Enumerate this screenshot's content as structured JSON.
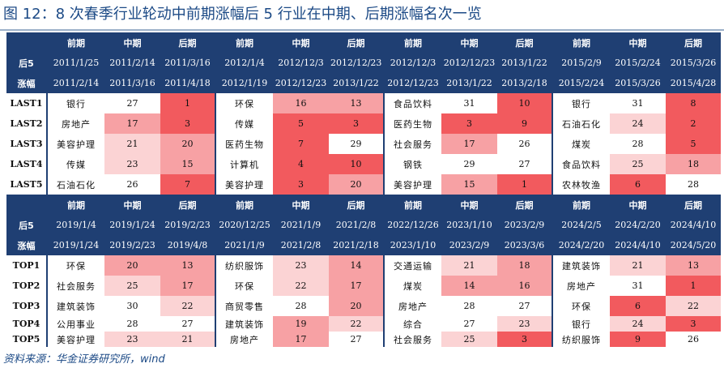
{
  "title": "图 12：8 次春季行业轮动中前期涨幅后 5 行业在中期、后期涨幅名次一览",
  "source": "资料来源：华金证券研究所，wind",
  "colors": {
    "header": "#1f3f73",
    "red_strong": "#f25a5e",
    "red_mid": "#f7a1a4",
    "red_light": "#fbd3d4",
    "title": "#1c4a86"
  },
  "sections": [
    {
      "corner_top": "后5",
      "corner_bottom": "涨幅",
      "groups": [
        {
          "labels": [
            "前期",
            "中期",
            "后期"
          ],
          "start_dates": [
            "2011/1/25",
            "2011/2/14",
            "2011/3/16"
          ],
          "end_dates": [
            "2011/2/14",
            "2011/3/16",
            "2011/4/18"
          ],
          "rows": [
            {
              "name": "银行",
              "mid": "27",
              "late": "1"
            },
            {
              "name": "房地产",
              "mid": "17",
              "late": "3"
            },
            {
              "name": "美容护理",
              "mid": "21",
              "late": "20"
            },
            {
              "name": "传媒",
              "mid": "23",
              "late": "15"
            },
            {
              "name": "石油石化",
              "mid": "26",
              "late": "7"
            }
          ]
        },
        {
          "labels": [
            "前期",
            "中期",
            "后期"
          ],
          "start_dates": [
            "2012/1/4",
            "2012/12/3",
            "2012/12/23"
          ],
          "end_dates": [
            "2012/1/19",
            "2012/12/23",
            "2013/1/22"
          ],
          "rows": [
            {
              "name": "环保",
              "mid": "16",
              "late": "13"
            },
            {
              "name": "传媒",
              "mid": "5",
              "late": "3"
            },
            {
              "name": "医药生物",
              "mid": "7",
              "late": "29"
            },
            {
              "name": "计算机",
              "mid": "4",
              "late": "10"
            },
            {
              "name": "美容护理",
              "mid": "3",
              "late": "20"
            }
          ]
        },
        {
          "labels": [
            "前期",
            "中期",
            "后期"
          ],
          "start_dates": [
            "2012/12/3",
            "2012/12/23",
            "2013/1/22"
          ],
          "end_dates": [
            "2012/12/23",
            "2013/1/22",
            "2013/2/18"
          ],
          "rows": [
            {
              "name": "食品饮料",
              "mid": "31",
              "late": "10"
            },
            {
              "name": "医药生物",
              "mid": "3",
              "late": "9"
            },
            {
              "name": "社会服务",
              "mid": "17",
              "late": "26"
            },
            {
              "name": "钢铁",
              "mid": "29",
              "late": "27"
            },
            {
              "name": "美容护理",
              "mid": "15",
              "late": "1"
            }
          ]
        },
        {
          "labels": [
            "前期",
            "中期",
            "后期"
          ],
          "start_dates": [
            "2015/2/9",
            "2015/2/24",
            "2015/3/26"
          ],
          "end_dates": [
            "2015/2/24",
            "2015/3/26",
            "2015/4/28"
          ],
          "rows": [
            {
              "name": "银行",
              "mid": "31",
              "late": "8"
            },
            {
              "name": "石油石化",
              "mid": "24",
              "late": "2"
            },
            {
              "name": "煤炭",
              "mid": "28",
              "late": "5"
            },
            {
              "name": "食品饮料",
              "mid": "25",
              "late": "18"
            },
            {
              "name": "农林牧渔",
              "mid": "6",
              "late": "28"
            }
          ]
        }
      ],
      "row_labels": [
        "LAST1",
        "LAST2",
        "LAST3",
        "LAST4",
        "LAST5"
      ]
    },
    {
      "corner_top": "后5",
      "corner_bottom": "涨幅",
      "groups": [
        {
          "labels": [
            "前期",
            "中期",
            "后期"
          ],
          "start_dates": [
            "2019/1/4",
            "2019/1/24",
            "2019/2/23"
          ],
          "end_dates": [
            "2019/1/24",
            "2019/2/23",
            "2019/4/8"
          ],
          "rows": [
            {
              "name": "环保",
              "mid": "20",
              "late": "13"
            },
            {
              "name": "社会服务",
              "mid": "25",
              "late": "17"
            },
            {
              "name": "建筑装饰",
              "mid": "30",
              "late": "22"
            },
            {
              "name": "公用事业",
              "mid": "28",
              "late": "27"
            },
            {
              "name": "美容护理",
              "mid": "23",
              "late": "21"
            }
          ]
        },
        {
          "labels": [
            "前期",
            "中期",
            "后期"
          ],
          "start_dates": [
            "2020/12/25",
            "2021/1/9",
            "2021/2/8"
          ],
          "end_dates": [
            "2021/1/9",
            "2021/2/8",
            "2021/2/18"
          ],
          "rows": [
            {
              "name": "纺织服饰",
              "mid": "23",
              "late": "14"
            },
            {
              "name": "环保",
              "mid": "22",
              "late": "17"
            },
            {
              "name": "商贸零售",
              "mid": "28",
              "late": "20"
            },
            {
              "name": "建筑装饰",
              "mid": "19",
              "late": "22"
            },
            {
              "name": "房地产",
              "mid": "17",
              "late": "27"
            }
          ]
        },
        {
          "labels": [
            "前期",
            "中期",
            "后期"
          ],
          "start_dates": [
            "2022/12/26",
            "2023/1/10",
            "2023/2/9"
          ],
          "end_dates": [
            "2023/1/10",
            "2023/2/9",
            "2023/3/6"
          ],
          "rows": [
            {
              "name": "交通运输",
              "mid": "21",
              "late": "18"
            },
            {
              "name": "煤炭",
              "mid": "14",
              "late": "16"
            },
            {
              "name": "房地产",
              "mid": "28",
              "late": "27"
            },
            {
              "name": "综合",
              "mid": "27",
              "late": "23"
            },
            {
              "name": "社会服务",
              "mid": "25",
              "late": "3"
            }
          ]
        },
        {
          "labels": [
            "前期",
            "中期",
            "后期"
          ],
          "start_dates": [
            "2024/2/5",
            "2024/2/20",
            "2024/4/10"
          ],
          "end_dates": [
            "2024/2/20",
            "2024/4/10",
            "2024/5/20"
          ],
          "rows": [
            {
              "name": "建筑装饰",
              "mid": "21",
              "late": "13"
            },
            {
              "name": "房地产",
              "mid": "31",
              "late": "1"
            },
            {
              "name": "环保",
              "mid": "6",
              "late": "22"
            },
            {
              "name": "银行",
              "mid": "24",
              "late": "3"
            },
            {
              "name": "纺织服饰",
              "mid": "9",
              "late": "26"
            }
          ]
        }
      ],
      "row_labels": [
        "TOP1",
        "TOP2",
        "TOP3",
        "TOP4",
        "TOP5"
      ]
    }
  ]
}
